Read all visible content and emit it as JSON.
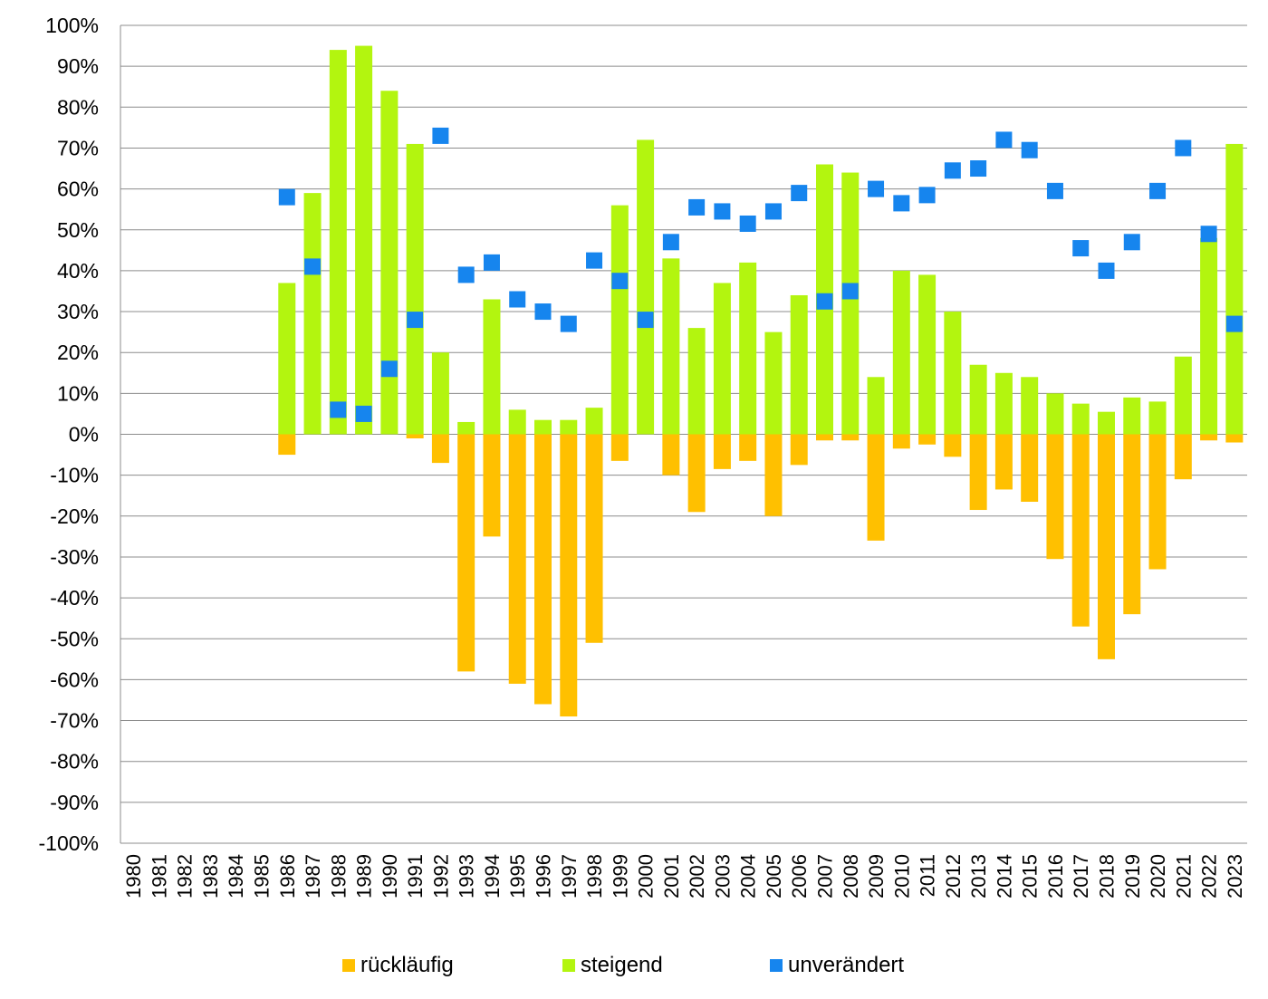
{
  "chart_data": {
    "type": "bar",
    "stacked": true,
    "title": "",
    "xlabel": "",
    "ylabel": "",
    "ylim": [
      -100,
      100
    ],
    "y_ticks": [
      "100%",
      "90%",
      "80%",
      "70%",
      "60%",
      "50%",
      "40%",
      "30%",
      "20%",
      "10%",
      "0%",
      "-10%",
      "-20%",
      "-30%",
      "-40%",
      "-50%",
      "-60%",
      "-70%",
      "-80%",
      "-90%",
      "-100%"
    ],
    "grid": true,
    "legend_position": "bottom",
    "categories": [
      "1980",
      "1981",
      "1982",
      "1983",
      "1984",
      "1985",
      "1986",
      "1987",
      "1988",
      "1989",
      "1990",
      "1991",
      "1992",
      "1993",
      "1994",
      "1995",
      "1996",
      "1997",
      "1998",
      "1999",
      "2000",
      "2001",
      "2002",
      "2003",
      "2004",
      "2005",
      "2006",
      "2007",
      "2008",
      "2009",
      "2010",
      "2011",
      "2012",
      "2013",
      "2014",
      "2015",
      "2016",
      "2017",
      "2018",
      "2019",
      "2020",
      "2021",
      "2022",
      "2023"
    ],
    "series": [
      {
        "name": "rückläufig",
        "kind": "bar",
        "color": "#FFC000",
        "values": [
          null,
          null,
          null,
          null,
          null,
          null,
          -5,
          0,
          0,
          0,
          0,
          -1,
          -7,
          -58,
          -25,
          -61,
          -66,
          -69,
          -51,
          -6.5,
          0,
          -10,
          -19,
          -8.5,
          -6.5,
          -20,
          -7.5,
          -1.5,
          -1.5,
          -26,
          -3.5,
          -2.5,
          -5.5,
          -18.5,
          -13.5,
          -16.5,
          -30.5,
          -47,
          -55,
          -44,
          -33,
          -11,
          -1.5,
          -2
        ]
      },
      {
        "name": "steigend",
        "kind": "bar",
        "color": "#B3F50F",
        "values": [
          null,
          null,
          null,
          null,
          null,
          null,
          37,
          59,
          94,
          95,
          84,
          71,
          20,
          3,
          33,
          6,
          3.5,
          3.5,
          6.5,
          56,
          72,
          43,
          26,
          37,
          42,
          25,
          34,
          66,
          64,
          14,
          40,
          39,
          30,
          17,
          15,
          14,
          10,
          7.5,
          5.5,
          9,
          8,
          19,
          48,
          71
        ]
      },
      {
        "name": "unverändert",
        "kind": "marker",
        "color": "#1685EE",
        "values": [
          null,
          null,
          null,
          null,
          null,
          null,
          58,
          41,
          6,
          5,
          16,
          28,
          73,
          39,
          42,
          33,
          30,
          27,
          42.5,
          37.5,
          28,
          47,
          55.5,
          54.5,
          51.5,
          54.5,
          59,
          32.5,
          35,
          60,
          56.5,
          58.5,
          64.5,
          65,
          72,
          69.5,
          59.5,
          45.5,
          40,
          47,
          59.5,
          70,
          49,
          27
        ]
      }
    ]
  }
}
